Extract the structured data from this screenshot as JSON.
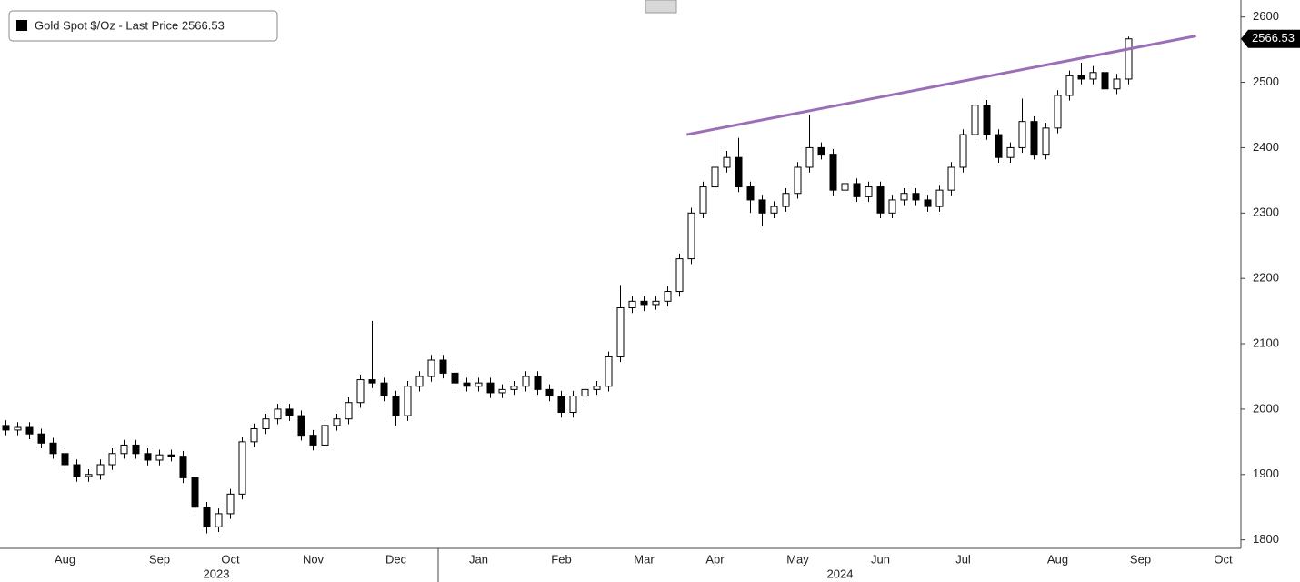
{
  "chart_data": {
    "type": "candlestick",
    "ylim": [
      1787,
      2626
    ],
    "yticks": [
      1800,
      1900,
      2000,
      2100,
      2200,
      2300,
      2400,
      2500,
      2600
    ],
    "categories": [
      null,
      null,
      null,
      null,
      null,
      "Aug",
      null,
      null,
      null,
      null,
      null,
      null,
      null,
      "Sep",
      null,
      null,
      null,
      null,
      null,
      "Oct",
      null,
      null,
      null,
      null,
      null,
      null,
      "Nov",
      null,
      null,
      null,
      null,
      null,
      null,
      "Dec",
      null,
      null,
      null,
      null,
      null,
      null,
      "Jan",
      null,
      null,
      null,
      null,
      null,
      null,
      "Feb",
      null,
      null,
      null,
      null,
      null,
      null,
      "Mar",
      null,
      null,
      null,
      null,
      null,
      "Apr",
      null,
      null,
      null,
      null,
      null,
      null,
      "May",
      null,
      null,
      null,
      null,
      null,
      null,
      "Jun",
      null,
      null,
      null,
      null,
      null,
      null,
      "Jul",
      null,
      null,
      null,
      null,
      null,
      null,
      null,
      "Aug",
      null,
      null,
      null,
      null,
      null,
      null,
      "Sep",
      null,
      null,
      null,
      null,
      null,
      null,
      "Oct",
      null
    ],
    "years": [
      "2023",
      "2024"
    ],
    "series": [
      {
        "name": "Gold Spot $/Oz - Last Price 2566.53",
        "color": "#000000",
        "open": [
          1975,
          1968,
          1972,
          1962,
          1948,
          1932,
          1915,
          1897,
          1900,
          1915,
          1932,
          1945,
          1932,
          1922,
          1930,
          1928,
          1895,
          1850,
          1820,
          1840,
          1870,
          1950,
          1970,
          1985,
          2000,
          1990,
          1960,
          1945,
          1975,
          1985,
          2010,
          2045,
          2040,
          2020,
          1990,
          2035,
          2050,
          2075,
          2055,
          2040,
          2035,
          2040,
          2025,
          2030,
          2035,
          2050,
          2030,
          2020,
          1995,
          2020,
          2030,
          2035,
          2080,
          2155,
          2165,
          2160,
          2165,
          2180,
          2230,
          2300,
          2340,
          2370,
          2385,
          2340,
          2320,
          2300,
          2310,
          2330,
          2370,
          2400,
          2390,
          2335,
          2345,
          2325,
          2340,
          2300,
          2320,
          2330,
          2320,
          2310,
          2335,
          2370,
          2420,
          2465,
          2420,
          2385,
          2400,
          2440,
          2390,
          2430,
          2480,
          2510,
          2505,
          2515,
          2490,
          2505,
          null,
          null,
          null,
          null,
          null,
          null,
          null,
          null,
          null
        ],
        "high": [
          1983,
          1980,
          1980,
          1970,
          1956,
          1940,
          1923,
          1908,
          1923,
          1940,
          1953,
          1953,
          1940,
          1938,
          1938,
          1936,
          1903,
          1858,
          1848,
          1878,
          1958,
          1978,
          1993,
          2008,
          2008,
          1998,
          1968,
          1983,
          1993,
          2018,
          2053,
          2135,
          2048,
          2028,
          2043,
          2058,
          2083,
          2083,
          2063,
          2048,
          2048,
          2048,
          2038,
          2043,
          2058,
          2058,
          2038,
          2028,
          2028,
          2038,
          2043,
          2088,
          2190,
          2173,
          2173,
          2173,
          2188,
          2238,
          2308,
          2348,
          2430,
          2395,
          2415,
          2348,
          2328,
          2318,
          2338,
          2378,
          2450,
          2408,
          2398,
          2353,
          2353,
          2348,
          2348,
          2328,
          2338,
          2338,
          2328,
          2343,
          2378,
          2428,
          2485,
          2473,
          2428,
          2408,
          2475,
          2448,
          2438,
          2488,
          2518,
          2530,
          2525,
          2523,
          2513,
          2570,
          null,
          null,
          null,
          null,
          null,
          null,
          null,
          null,
          null
        ],
        "low": [
          1960,
          1960,
          1954,
          1940,
          1924,
          1907,
          1889,
          1889,
          1892,
          1907,
          1924,
          1924,
          1914,
          1914,
          1920,
          1887,
          1842,
          1810,
          1812,
          1832,
          1862,
          1942,
          1962,
          1977,
          1982,
          1952,
          1937,
          1937,
          1967,
          1977,
          2002,
          2032,
          2012,
          1975,
          1982,
          2027,
          2042,
          2047,
          2032,
          2027,
          2027,
          2017,
          2017,
          2022,
          2027,
          2022,
          2012,
          1987,
          1987,
          2012,
          2022,
          2027,
          2072,
          2147,
          2150,
          2152,
          2157,
          2172,
          2222,
          2292,
          2332,
          2362,
          2332,
          2300,
          2280,
          2292,
          2302,
          2322,
          2362,
          2382,
          2327,
          2327,
          2317,
          2317,
          2292,
          2292,
          2312,
          2312,
          2302,
          2302,
          2327,
          2362,
          2412,
          2412,
          2377,
          2377,
          2392,
          2382,
          2382,
          2422,
          2472,
          2497,
          2497,
          2482,
          2482,
          2497,
          null,
          null,
          null,
          null,
          null,
          null,
          null,
          null,
          null
        ],
        "close": [
          1968,
          1972,
          1962,
          1948,
          1932,
          1915,
          1897,
          1900,
          1915,
          1932,
          1945,
          1932,
          1922,
          1930,
          1928,
          1895,
          1850,
          1820,
          1840,
          1870,
          1950,
          1970,
          1985,
          2000,
          1990,
          1960,
          1945,
          1975,
          1985,
          2010,
          2045,
          2040,
          2020,
          1990,
          2035,
          2050,
          2075,
          2055,
          2040,
          2035,
          2040,
          2025,
          2030,
          2035,
          2050,
          2030,
          2020,
          1995,
          2020,
          2030,
          2035,
          2080,
          2155,
          2165,
          2160,
          2165,
          2180,
          2230,
          2300,
          2340,
          2370,
          2385,
          2340,
          2320,
          2300,
          2310,
          2330,
          2370,
          2400,
          2390,
          2335,
          2345,
          2325,
          2340,
          2300,
          2320,
          2330,
          2320,
          2310,
          2335,
          2370,
          2420,
          2465,
          2420,
          2385,
          2400,
          2440,
          2390,
          2430,
          2480,
          2510,
          2505,
          2515,
          2490,
          2505,
          2566.53,
          null,
          null,
          null,
          null,
          null,
          null,
          null,
          null,
          null
        ],
        "last_label": "2566.53"
      }
    ],
    "trendline": {
      "color": "#9b6fb8",
      "start": [
        57.6,
        2420
      ],
      "end": [
        100.7,
        2571
      ]
    }
  }
}
